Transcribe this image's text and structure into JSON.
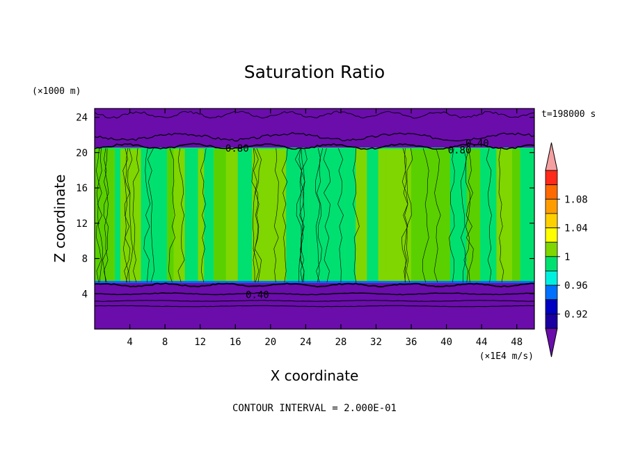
{
  "chart_data": {
    "type": "heatmap",
    "title": "Saturation Ratio",
    "xlabel": "X coordinate",
    "ylabel": "Z coordinate",
    "x_units": "(×1E4 m/s)",
    "y_units": "(×1000 m)",
    "xlim": [
      0,
      50
    ],
    "ylim": [
      0,
      25
    ],
    "x_ticks": [
      4,
      8,
      12,
      16,
      20,
      24,
      28,
      32,
      36,
      40,
      44,
      48
    ],
    "y_ticks": [
      4,
      8,
      12,
      16,
      20,
      24
    ],
    "time_label": "t=198000 s",
    "footer": "CONTOUR INTERVAL = 2.000E-01",
    "contour_labels": [
      {
        "text": "0.40",
        "x": 43.5,
        "z": 21.1
      },
      {
        "text": "0.80",
        "x": 41.5,
        "z": 20.3
      },
      {
        "text": "0.80",
        "x": 16.2,
        "z": 20.5
      },
      {
        "text": "0.40",
        "x": 18.5,
        "z": 3.9
      }
    ],
    "layers": [
      {
        "name": "upper dry layer",
        "z_from": 20.5,
        "z_to": 25.0,
        "color": "#6a0dab"
      },
      {
        "name": "saturated column",
        "z_from": 5.3,
        "z_to": 20.5,
        "color": "#7fd600"
      },
      {
        "name": "lower dry layer",
        "z_from": 0.0,
        "z_to": 5.3,
        "color": "#6a0dab"
      }
    ],
    "colorbar": {
      "colors": [
        "#f4a0a0",
        "#ff2a1a",
        "#ff6a00",
        "#ff9d00",
        "#ffd000",
        "#ffff00",
        "#7fd600",
        "#00e070",
        "#00f0e0",
        "#0070ff",
        "#0000c0",
        "#1a00a0",
        "#6a0dab"
      ],
      "labels": [
        "1.08",
        "1.04",
        "1",
        "0.96",
        "0.92"
      ],
      "label_values": [
        1.08,
        1.04,
        1.0,
        0.96,
        0.92
      ],
      "vmin": 0.9,
      "vmax": 1.12
    }
  }
}
